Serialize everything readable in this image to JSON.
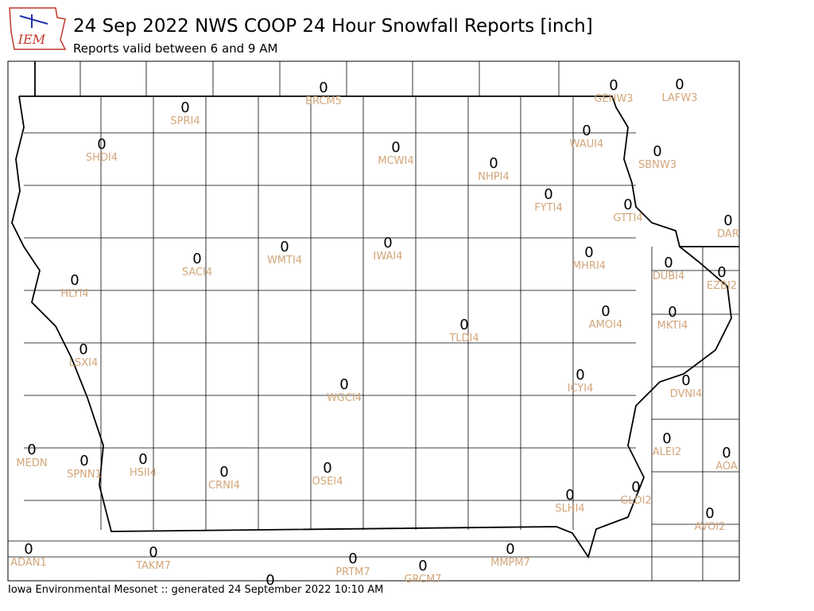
{
  "header": {
    "logo": "IEM",
    "title": "24 Sep 2022 NWS COOP 24 Hour Snowfall Reports [inch]",
    "subtitle": "Reports valid between 6 and 9 AM"
  },
  "stations": [
    {
      "id": "SPRI4",
      "value": 0
    },
    {
      "id": "BRCM5",
      "value": 0
    },
    {
      "id": "GEHW3",
      "value": 0
    },
    {
      "id": "LAFW3",
      "value": 0
    },
    {
      "id": "SHDI4",
      "value": 0
    },
    {
      "id": "MCWI4",
      "value": 0
    },
    {
      "id": "NHPI4",
      "value": 0
    },
    {
      "id": "WAUI4",
      "value": 0
    },
    {
      "id": "SBNW3",
      "value": 0
    },
    {
      "id": "FYTI4",
      "value": 0
    },
    {
      "id": "GTTI4",
      "value": 0
    },
    {
      "id": "DAR",
      "value": 0
    },
    {
      "id": "WMTI4",
      "value": 0
    },
    {
      "id": "IWAI4",
      "value": 0
    },
    {
      "id": "SACI4",
      "value": 0
    },
    {
      "id": "MHRI4",
      "value": 0
    },
    {
      "id": "DUBI4",
      "value": 0
    },
    {
      "id": "EZBI2",
      "value": 0
    },
    {
      "id": "HLYI4",
      "value": 0
    },
    {
      "id": "AMOI4",
      "value": 0
    },
    {
      "id": "MKTI4",
      "value": 0
    },
    {
      "id": "TLDI4",
      "value": 0
    },
    {
      "id": "LSXI4",
      "value": 0
    },
    {
      "id": "ICYI4",
      "value": 0
    },
    {
      "id": "WGCI4",
      "value": 0
    },
    {
      "id": "DVNI4",
      "value": 0
    },
    {
      "id": "ALEI2",
      "value": 0
    },
    {
      "id": "AOA",
      "value": 0
    },
    {
      "id": "MEDN",
      "value": 0
    },
    {
      "id": "SPNN1",
      "value": 0
    },
    {
      "id": "HSII4",
      "value": 0
    },
    {
      "id": "CRNI4",
      "value": 0
    },
    {
      "id": "OSEI4",
      "value": 0
    },
    {
      "id": "GLDI2",
      "value": 0
    },
    {
      "id": "SLHI4",
      "value": 0
    },
    {
      "id": "AVOI2",
      "value": 0
    },
    {
      "id": "ADAN1",
      "value": 0
    },
    {
      "id": "TAKM7",
      "value": 0
    },
    {
      "id": "PRTM7",
      "value": 0
    },
    {
      "id": "GRCM7",
      "value": 0
    },
    {
      "id": "MMPM7",
      "value": 0
    },
    {
      "value": 0
    }
  ],
  "footer": "Iowa Environmental Mesonet :: generated 24 September 2022 10:10 AM"
}
